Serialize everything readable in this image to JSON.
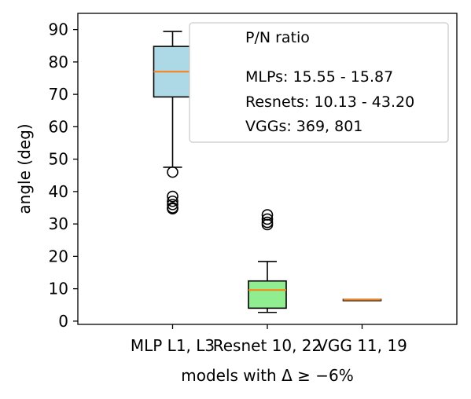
{
  "chart_data": {
    "type": "box",
    "title": "",
    "ylabel": "angle (deg)",
    "xlabel": "models with Δ ≥ −6%",
    "ylim": [
      -1,
      95
    ],
    "yticks": [
      0,
      10,
      20,
      30,
      40,
      50,
      60,
      70,
      80,
      90
    ],
    "grid": false,
    "categories": [
      "MLP L1, L3",
      "Resnet 10, 22",
      "VGG 11, 19"
    ],
    "boxes": [
      {
        "label": "MLP L1, L3",
        "whisker_low": 47.5,
        "q1": 69.2,
        "median": 77.0,
        "q3": 84.8,
        "whisker_high": 89.4,
        "outliers": [
          46,
          38.5,
          37,
          36,
          35,
          34.7
        ],
        "fill": "#add8e6"
      },
      {
        "label": "Resnet 10, 22",
        "whisker_low": 2.7,
        "q1": 4.0,
        "median": 9.6,
        "q3": 12.4,
        "whisker_high": 18.4,
        "outliers": [
          32.8,
          31.5,
          30.5,
          29.8
        ],
        "fill": "#90ee90"
      },
      {
        "label": "VGG 11, 19",
        "whisker_low": 6.4,
        "q1": 6.5,
        "median": 6.6,
        "q3": 6.7,
        "whisker_high": 6.7,
        "outliers": [],
        "fill": "#f5b895"
      }
    ],
    "median_color": "#ff7f0e",
    "legend": {
      "placement": "top-right",
      "title": "P/N ratio",
      "lines": [
        "MLPs: 15.55 - 15.87",
        "Resnets: 10.13 - 43.20",
        "VGGs: 369, 801"
      ]
    }
  }
}
